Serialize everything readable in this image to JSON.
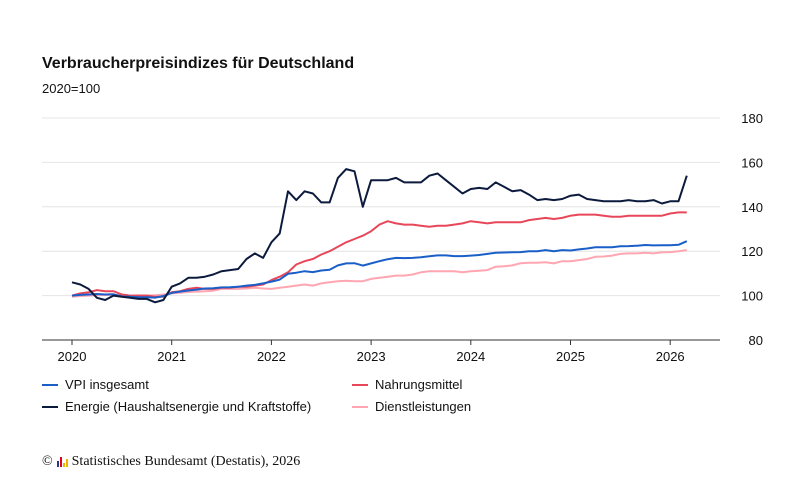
{
  "chart_data": {
    "type": "line",
    "title": "Verbraucherpreisindizes für Deutschland",
    "subtitle": "2020=100",
    "xlabel": "",
    "ylabel": "",
    "x_start": "2020-01",
    "x_frequency": "monthly",
    "x_ticks": [
      "2020",
      "2021",
      "2022",
      "2023",
      "2024",
      "2025",
      "2026"
    ],
    "y_ticks": [
      80,
      100,
      120,
      140,
      160,
      180
    ],
    "ylim": [
      80,
      180
    ],
    "grid": true,
    "legend_placement": "bottom",
    "series": [
      {
        "name": "VPI insgesamt",
        "color": "#1a5fc8",
        "values": [
          100,
          100.3,
          100.5,
          100.7,
          100.5,
          100.6,
          99.6,
          99.5,
          99.3,
          99.3,
          99.1,
          99.8,
          101.2,
          101.8,
          102.3,
          102.7,
          103.2,
          103.3,
          103.7,
          103.8,
          104,
          104.5,
          104.8,
          105.5,
          106.3,
          107.2,
          109.8,
          110.3,
          111,
          110.6,
          111.3,
          111.6,
          113.6,
          114.5,
          114.6,
          113.5,
          114.5,
          115.5,
          116.4,
          117,
          116.9,
          117,
          117.3,
          117.7,
          118.1,
          118.1,
          117.8,
          117.8,
          118,
          118.3,
          118.8,
          119.3,
          119.4,
          119.5,
          119.6,
          120,
          120,
          120.5,
          120,
          120.5,
          120.3,
          120.8,
          121.2,
          121.8,
          121.8,
          121.8,
          122.2,
          122.3,
          122.5,
          122.8,
          122.6,
          122.7,
          122.7,
          122.9,
          124.5
        ]
      },
      {
        "name": "Nahrungsmittel",
        "color": "#e8475a",
        "values": [
          100,
          101,
          101.5,
          102.5,
          102,
          102,
          100.5,
          100,
          100,
          100,
          99.5,
          99.5,
          101.5,
          102,
          103,
          103.5,
          103,
          103,
          103.5,
          103.5,
          104,
          104,
          104.5,
          105,
          107,
          108.5,
          110.5,
          114,
          115.5,
          116.5,
          118.5,
          120,
          122,
          124,
          125.5,
          127,
          129,
          132,
          133.5,
          132.5,
          132,
          132,
          131.5,
          131,
          131.5,
          131.5,
          132,
          132.5,
          133.5,
          133,
          132.5,
          133,
          133,
          133,
          133,
          134,
          134.5,
          135,
          134.5,
          135,
          136,
          136.5,
          136.5,
          136.5,
          136,
          135.5,
          135.5,
          136,
          136,
          136,
          136,
          136,
          137,
          137.5,
          137.5
        ]
      },
      {
        "name": "Energie (Haushaltsenergie und Kraftstoffe)",
        "color": "#0c1a3d",
        "values": [
          106,
          105,
          103,
          99,
          98,
          100,
          99.5,
          99,
          98.5,
          98.5,
          97,
          98,
          104,
          105.5,
          108,
          108,
          108.5,
          109.5,
          111,
          111.5,
          112,
          116.5,
          119,
          117,
          124,
          128,
          147,
          143,
          147,
          146,
          142,
          142,
          153,
          157,
          156,
          140,
          152,
          152,
          152,
          153,
          151,
          151,
          151,
          154,
          155,
          152,
          149,
          146,
          148,
          148.5,
          148,
          151,
          149,
          147,
          147.5,
          145.5,
          143,
          143.5,
          143,
          143.5,
          145,
          145.5,
          143.5,
          143,
          142.5,
          142.5,
          142.5,
          143,
          142.5,
          142.5,
          143,
          141.5,
          142.5,
          142.5,
          154
        ]
      },
      {
        "name": "Dienstleistungen",
        "color": "#ffa6b2",
        "values": [
          99.5,
          99.8,
          100,
          100.2,
          100.3,
          100.4,
          100,
          100,
          100.1,
          100.1,
          100.2,
          100.5,
          101,
          101.3,
          101.6,
          101.8,
          102,
          102.2,
          103,
          103,
          103,
          103.2,
          103.5,
          103.2,
          103,
          103.5,
          104,
          104.5,
          105,
          104.5,
          105.5,
          106,
          106.5,
          106.7,
          106.5,
          106.5,
          107.5,
          108,
          108.5,
          109,
          109,
          109.5,
          110.5,
          111,
          111,
          111,
          111,
          110.5,
          111,
          111.2,
          111.5,
          113,
          113.2,
          113.6,
          114.6,
          114.8,
          114.8,
          115,
          114.5,
          115.5,
          115.5,
          116,
          116.5,
          117.5,
          117.6,
          118,
          118.8,
          119,
          119,
          119.3,
          119,
          119.5,
          119.6,
          120,
          120.5
        ]
      }
    ]
  },
  "legend": {
    "items": [
      "VPI insgesamt",
      "Nahrungsmittel",
      "Energie (Haushaltsenergie und Kraftstoffe)",
      "Dienstleistungen"
    ]
  },
  "source": {
    "copyright": "©",
    "text": "Statistisches Bundesamt (Destatis), 2026"
  }
}
